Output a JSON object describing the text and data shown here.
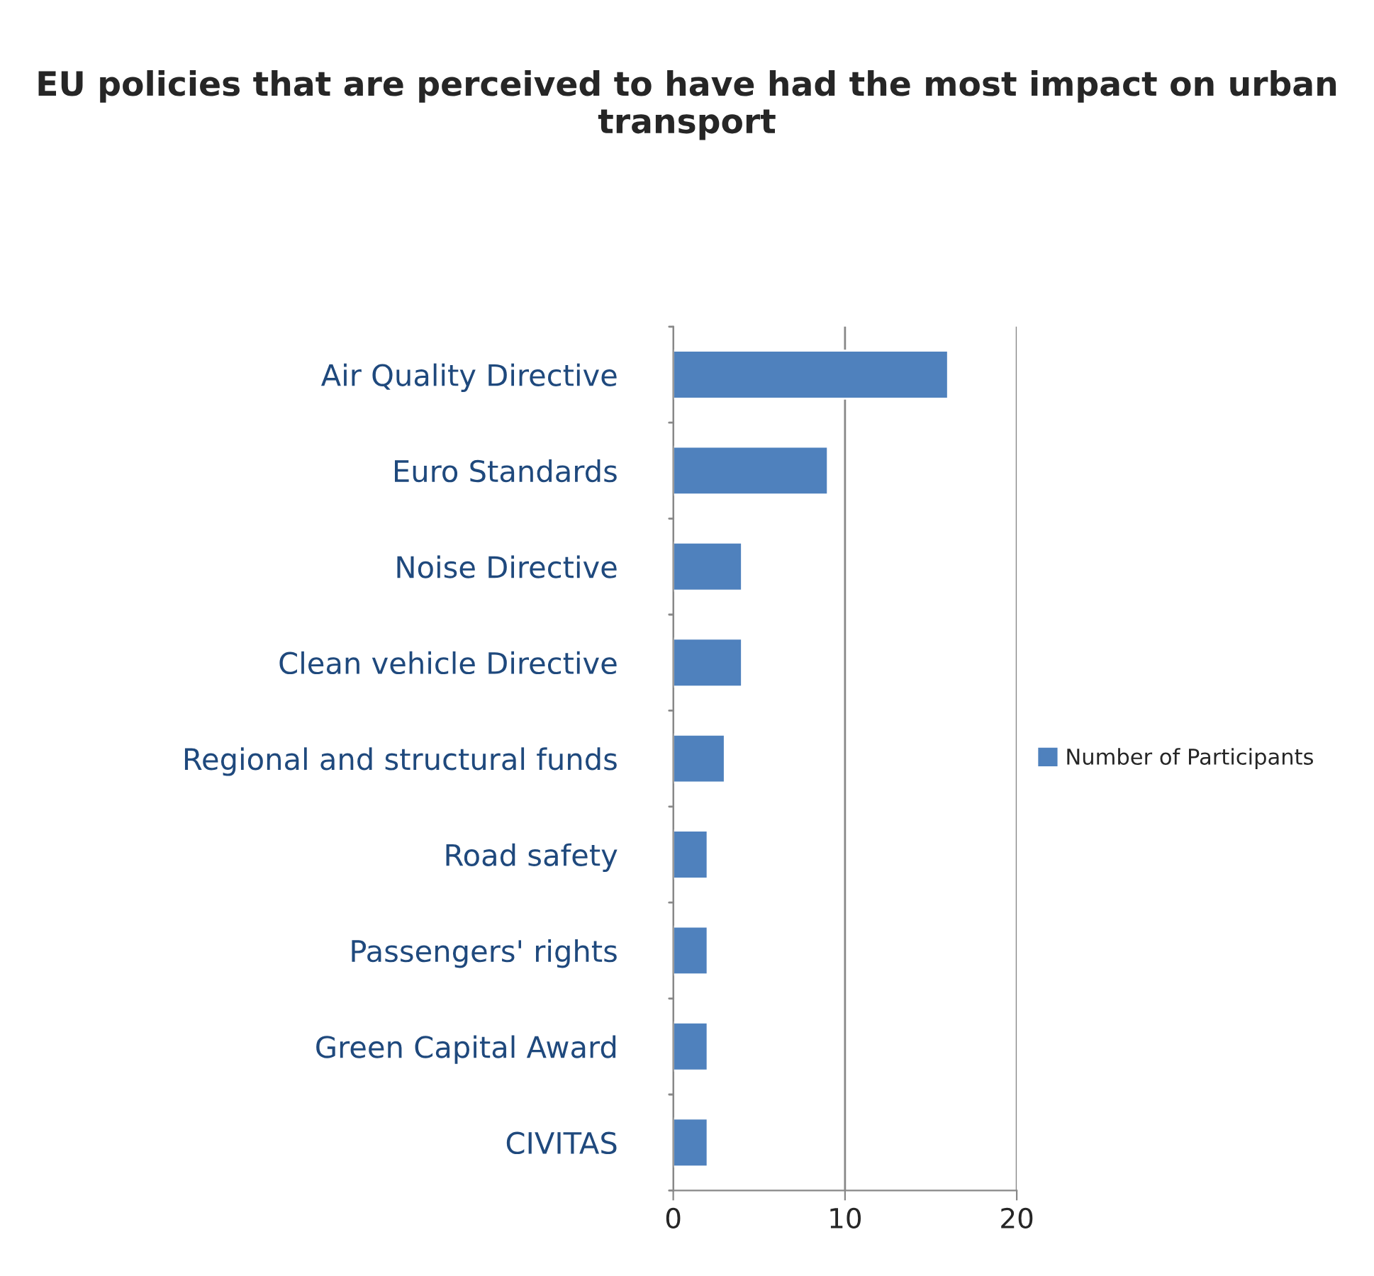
{
  "chart_data": {
    "type": "bar",
    "orientation": "horizontal",
    "title": "EU policies that are perceived to have had the most impact on urban transport",
    "categories": [
      "Air Quality Directive",
      "Euro Standards",
      "Noise Directive",
      "Clean vehicle Directive",
      "Regional and structural funds",
      "Road safety",
      "Passengers' rights",
      "Green Capital Award",
      "CIVITAS"
    ],
    "series": [
      {
        "name": "Number of Participants",
        "color": "#4f81bd",
        "values": [
          16,
          9,
          4,
          4,
          3,
          2,
          2,
          2,
          2
        ]
      }
    ],
    "xlim": [
      0,
      20
    ],
    "xticks": [
      0,
      10,
      20
    ],
    "grid": "x",
    "legend": "right"
  }
}
